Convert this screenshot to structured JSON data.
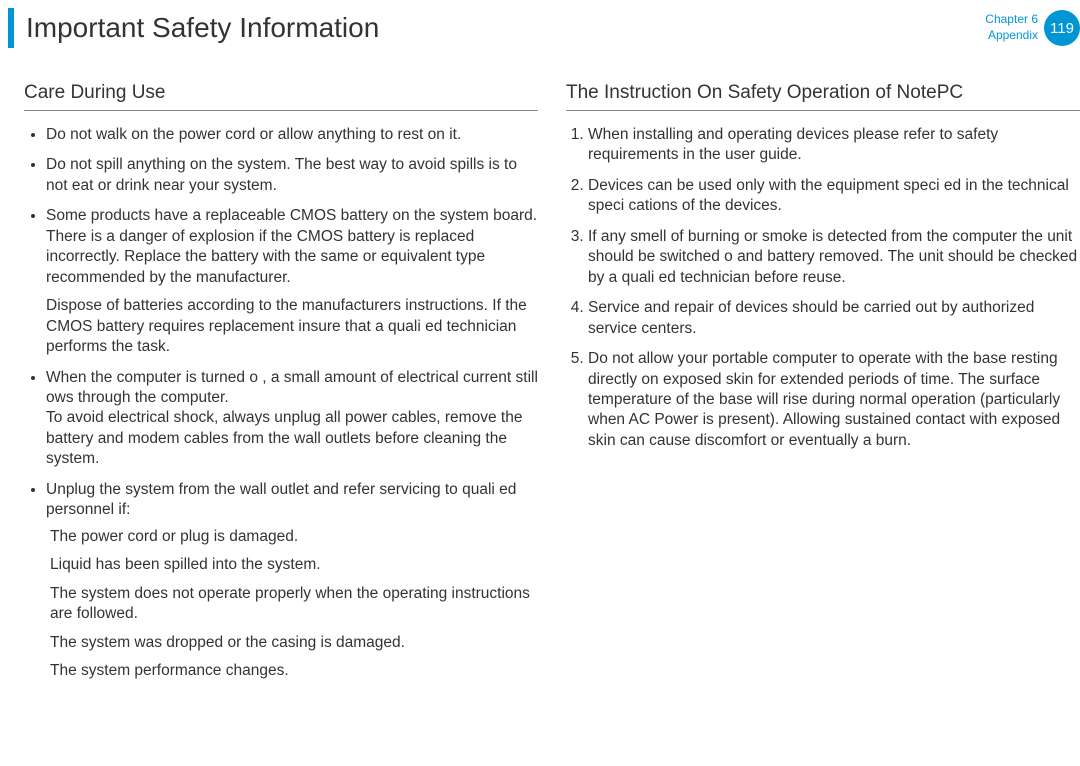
{
  "header": {
    "title": "Important Safety Information",
    "chapter_line1": "Chapter 6",
    "chapter_line2": "Appendix",
    "page_number": "119"
  },
  "left": {
    "heading": "Care During Use",
    "items": [
      {
        "text": "Do not walk on the power cord or allow anything to rest on it."
      },
      {
        "text": "Do not spill anything on the system. The best way to avoid spills is to not eat or drink near your system."
      },
      {
        "text": "Some products have a replaceable CMOS battery on the system board. There is a danger of explosion if the CMOS battery is replaced incorrectly. Replace the battery with the same or equivalent type recommended by the manufacturer.",
        "sub_para": "Dispose of batteries according to the manufacturers instructions. If the CMOS battery requires replacement insure that a quali ed technician performs the task."
      },
      {
        "text": "When the computer is turned o , a small amount of electrical current still  ows through the computer.\nTo avoid electrical shock, always unplug all power cables, remove the battery and modem cables from the wall outlets before cleaning the system."
      },
      {
        "text": "Unplug the system from the wall outlet and refer servicing to quali ed personnel if:",
        "sub_items": [
          "The power cord or plug is damaged.",
          "Liquid has been spilled into the system.",
          "The system does not operate properly when the operating instructions are followed.",
          "The system was dropped or the casing is damaged.",
          "The system performance changes."
        ]
      }
    ]
  },
  "right": {
    "heading": "The Instruction On Safety Operation of NotePC",
    "items": [
      "When installing and operating devices please refer to safety requirements in the user guide.",
      "Devices can be used only with the equipment speci ed in the technical speci cations of the devices.",
      "If any smell of burning or smoke is detected from the computer the unit should be switched o  and battery removed. The unit should be checked by a quali ed technician before reuse.",
      "Service and repair of devices should be carried out by authorized service centers.",
      "Do not allow your portable computer to operate with the base resting directly on exposed skin for extended periods of time. The surface temperature of the base will rise during normal operation (particularly when AC Power is present). Allowing sustained contact with exposed skin can cause discomfort or eventually a burn."
    ]
  },
  "colors": {
    "accent": "#0096d6",
    "text": "#333333",
    "rule": "#888888",
    "background": "#ffffff"
  },
  "typography": {
    "title_fontsize": 28,
    "heading_fontsize": 19,
    "body_fontsize": 15.5,
    "chapter_fontsize": 12,
    "badge_fontsize": 15
  }
}
